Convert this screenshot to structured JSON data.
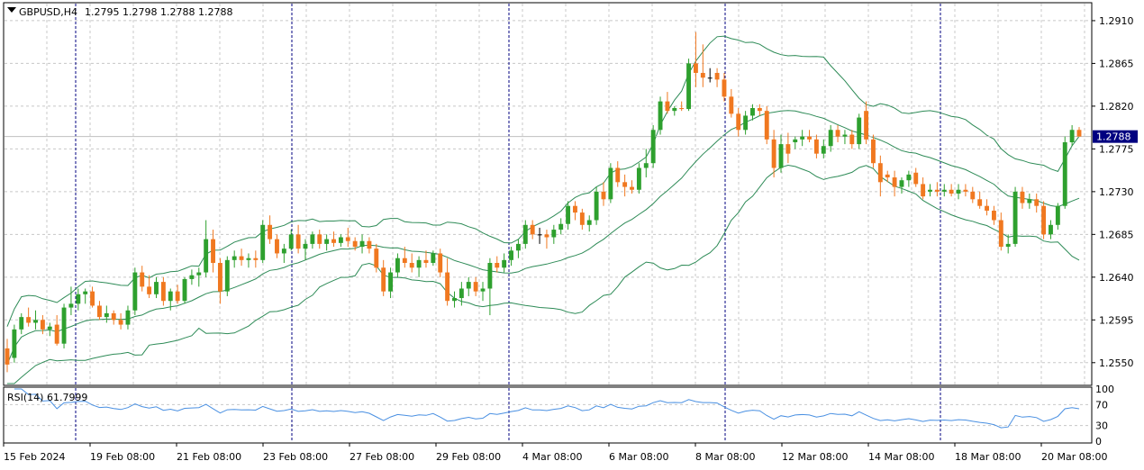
{
  "header": {
    "symbol_label": "GBPUSD,H4",
    "ohlc_values": [
      "1.2795",
      "1.2798",
      "1.2788",
      "1.2788"
    ]
  },
  "current_price_label": "1.2788",
  "price_axis_labels": [
    "1.2910",
    "1.2865",
    "1.2820",
    "1.2775",
    "1.2730",
    "1.2685",
    "1.2640",
    "1.2595",
    "1.2550"
  ],
  "rsi": {
    "label": "RSI(14) 61.7999",
    "axis_labels": [
      "100",
      "70",
      "30",
      "0"
    ]
  },
  "time_axis_labels": [
    "15 Feb 2024",
    "19 Feb 08:00",
    "21 Feb 08:00",
    "23 Feb 08:00",
    "27 Feb 08:00",
    "29 Feb 08:00",
    "4 Mar 08:00",
    "6 Mar 08:00",
    "8 Mar 08:00",
    "12 Mar 08:00",
    "14 Mar 08:00",
    "18 Mar 08:00",
    "20 Mar 08:00"
  ],
  "colors": {
    "bull": "#2ea02e",
    "bear": "#f07820",
    "doji": "#000000",
    "bands": "#2e8b57",
    "rsi_line": "#4a90e2",
    "separator": "#000080",
    "grid": "#c8c8c8",
    "price_tag_bg": "#000080"
  },
  "chart_data": {
    "type": "candlestick",
    "symbol": "GBPUSD",
    "timeframe": "H4",
    "y_range": [
      1.2528,
      1.2927
    ],
    "indicators": [
      "Bollinger Bands",
      "RSI(14)"
    ],
    "rsi_value": 61.7999,
    "rsi_range": [
      0,
      100
    ],
    "rsi_levels": [
      70,
      30
    ],
    "grid": true,
    "candles": [
      {
        "o": 1.2565,
        "h": 1.2575,
        "l": 1.254,
        "c": 1.2548
      },
      {
        "o": 1.2555,
        "h": 1.259,
        "l": 1.255,
        "c": 1.2585
      },
      {
        "o": 1.2585,
        "h": 1.2602,
        "l": 1.258,
        "c": 1.2598
      },
      {
        "o": 1.2598,
        "h": 1.2608,
        "l": 1.2588,
        "c": 1.2592
      },
      {
        "o": 1.2592,
        "h": 1.2605,
        "l": 1.2585,
        "c": 1.2595
      },
      {
        "o": 1.2595,
        "h": 1.26,
        "l": 1.258,
        "c": 1.2585
      },
      {
        "o": 1.2585,
        "h": 1.2592,
        "l": 1.2578,
        "c": 1.2588
      },
      {
        "o": 1.259,
        "h": 1.26,
        "l": 1.2568,
        "c": 1.257
      },
      {
        "o": 1.257,
        "h": 1.2612,
        "l": 1.2565,
        "c": 1.2608
      },
      {
        "o": 1.2608,
        "h": 1.263,
        "l": 1.26,
        "c": 1.2612
      },
      {
        "o": 1.2612,
        "h": 1.2628,
        "l": 1.2605,
        "c": 1.2622
      },
      {
        "o": 1.2622,
        "h": 1.2628,
        "l": 1.2612,
        "c": 1.2625
      },
      {
        "o": 1.2625,
        "h": 1.263,
        "l": 1.2608,
        "c": 1.261
      },
      {
        "o": 1.261,
        "h": 1.2615,
        "l": 1.2595,
        "c": 1.2598
      },
      {
        "o": 1.2598,
        "h": 1.261,
        "l": 1.2592,
        "c": 1.2602
      },
      {
        "o": 1.2602,
        "h": 1.2605,
        "l": 1.259,
        "c": 1.2595
      },
      {
        "o": 1.2595,
        "h": 1.2602,
        "l": 1.2585,
        "c": 1.259
      },
      {
        "o": 1.259,
        "h": 1.261,
        "l": 1.2585,
        "c": 1.2605
      },
      {
        "o": 1.2605,
        "h": 1.265,
        "l": 1.26,
        "c": 1.2645
      },
      {
        "o": 1.2645,
        "h": 1.2652,
        "l": 1.2625,
        "c": 1.263
      },
      {
        "o": 1.263,
        "h": 1.2642,
        "l": 1.2618,
        "c": 1.2622
      },
      {
        "o": 1.2622,
        "h": 1.264,
        "l": 1.2618,
        "c": 1.2635
      },
      {
        "o": 1.2635,
        "h": 1.264,
        "l": 1.261,
        "c": 1.2615
      },
      {
        "o": 1.2615,
        "h": 1.2628,
        "l": 1.2605,
        "c": 1.2625
      },
      {
        "o": 1.2625,
        "h": 1.2632,
        "l": 1.2612,
        "c": 1.2615
      },
      {
        "o": 1.2615,
        "h": 1.264,
        "l": 1.2612,
        "c": 1.2638
      },
      {
        "o": 1.2638,
        "h": 1.2648,
        "l": 1.2632,
        "c": 1.2642
      },
      {
        "o": 1.2642,
        "h": 1.265,
        "l": 1.263,
        "c": 1.2645
      },
      {
        "o": 1.2645,
        "h": 1.27,
        "l": 1.264,
        "c": 1.268
      },
      {
        "o": 1.268,
        "h": 1.269,
        "l": 1.2645,
        "c": 1.2655
      },
      {
        "o": 1.2655,
        "h": 1.266,
        "l": 1.2612,
        "c": 1.2625
      },
      {
        "o": 1.2625,
        "h": 1.2662,
        "l": 1.262,
        "c": 1.2658
      },
      {
        "o": 1.2658,
        "h": 1.2668,
        "l": 1.265,
        "c": 1.2662
      },
      {
        "o": 1.2662,
        "h": 1.267,
        "l": 1.2652,
        "c": 1.2658
      },
      {
        "o": 1.2658,
        "h": 1.2665,
        "l": 1.265,
        "c": 1.266
      },
      {
        "o": 1.266,
        "h": 1.2668,
        "l": 1.265,
        "c": 1.2658
      },
      {
        "o": 1.2658,
        "h": 1.27,
        "l": 1.2655,
        "c": 1.2695
      },
      {
        "o": 1.2695,
        "h": 1.2705,
        "l": 1.2675,
        "c": 1.268
      },
      {
        "o": 1.268,
        "h": 1.2685,
        "l": 1.266,
        "c": 1.2665
      },
      {
        "o": 1.2665,
        "h": 1.2675,
        "l": 1.2655,
        "c": 1.267
      },
      {
        "o": 1.267,
        "h": 1.269,
        "l": 1.2668,
        "c": 1.2685
      },
      {
        "o": 1.2685,
        "h": 1.2695,
        "l": 1.2665,
        "c": 1.267
      },
      {
        "o": 1.267,
        "h": 1.268,
        "l": 1.2658,
        "c": 1.2675
      },
      {
        "o": 1.2675,
        "h": 1.2688,
        "l": 1.267,
        "c": 1.2685
      },
      {
        "o": 1.2685,
        "h": 1.269,
        "l": 1.267,
        "c": 1.2675
      },
      {
        "o": 1.2675,
        "h": 1.2685,
        "l": 1.2668,
        "c": 1.268
      },
      {
        "o": 1.268,
        "h": 1.2688,
        "l": 1.2672,
        "c": 1.2676
      },
      {
        "o": 1.2676,
        "h": 1.2685,
        "l": 1.2672,
        "c": 1.2682
      },
      {
        "o": 1.2682,
        "h": 1.2692,
        "l": 1.2672,
        "c": 1.2678
      },
      {
        "o": 1.2678,
        "h": 1.2682,
        "l": 1.2668,
        "c": 1.2672
      },
      {
        "o": 1.2672,
        "h": 1.2685,
        "l": 1.2665,
        "c": 1.2678
      },
      {
        "o": 1.2678,
        "h": 1.2682,
        "l": 1.2665,
        "c": 1.267
      },
      {
        "o": 1.267,
        "h": 1.2675,
        "l": 1.2645,
        "c": 1.265
      },
      {
        "o": 1.265,
        "h": 1.2658,
        "l": 1.262,
        "c": 1.2625
      },
      {
        "o": 1.2625,
        "h": 1.265,
        "l": 1.2618,
        "c": 1.2645
      },
      {
        "o": 1.2645,
        "h": 1.2665,
        "l": 1.264,
        "c": 1.266
      },
      {
        "o": 1.266,
        "h": 1.2672,
        "l": 1.265,
        "c": 1.2655
      },
      {
        "o": 1.2655,
        "h": 1.2665,
        "l": 1.2645,
        "c": 1.265
      },
      {
        "o": 1.265,
        "h": 1.2662,
        "l": 1.264,
        "c": 1.2658
      },
      {
        "o": 1.2658,
        "h": 1.2668,
        "l": 1.265,
        "c": 1.2655
      },
      {
        "o": 1.2655,
        "h": 1.2668,
        "l": 1.2652,
        "c": 1.2665
      },
      {
        "o": 1.2665,
        "h": 1.267,
        "l": 1.264,
        "c": 1.2645
      },
      {
        "o": 1.2645,
        "h": 1.266,
        "l": 1.261,
        "c": 1.2615
      },
      {
        "o": 1.2615,
        "h": 1.2625,
        "l": 1.2608,
        "c": 1.2618
      },
      {
        "o": 1.2618,
        "h": 1.2635,
        "l": 1.261,
        "c": 1.2628
      },
      {
        "o": 1.2628,
        "h": 1.264,
        "l": 1.262,
        "c": 1.2635
      },
      {
        "o": 1.2635,
        "h": 1.264,
        "l": 1.262,
        "c": 1.2625
      },
      {
        "o": 1.2625,
        "h": 1.2635,
        "l": 1.2615,
        "c": 1.2628
      },
      {
        "o": 1.2628,
        "h": 1.266,
        "l": 1.26,
        "c": 1.2655
      },
      {
        "o": 1.2655,
        "h": 1.2662,
        "l": 1.2645,
        "c": 1.265
      },
      {
        "o": 1.265,
        "h": 1.2665,
        "l": 1.2645,
        "c": 1.2658
      },
      {
        "o": 1.2658,
        "h": 1.2672,
        "l": 1.2652,
        "c": 1.2668
      },
      {
        "o": 1.2668,
        "h": 1.268,
        "l": 1.266,
        "c": 1.2675
      },
      {
        "o": 1.2675,
        "h": 1.27,
        "l": 1.267,
        "c": 1.2695
      },
      {
        "o": 1.2695,
        "h": 1.27,
        "l": 1.268,
        "c": 1.2685
      },
      {
        "o": 1.2685,
        "h": 1.2692,
        "l": 1.2675,
        "c": 1.2685
      },
      {
        "o": 1.2685,
        "h": 1.269,
        "l": 1.267,
        "c": 1.2682
      },
      {
        "o": 1.2682,
        "h": 1.2695,
        "l": 1.2675,
        "c": 1.269
      },
      {
        "o": 1.269,
        "h": 1.2702,
        "l": 1.2685,
        "c": 1.2696
      },
      {
        "o": 1.2696,
        "h": 1.272,
        "l": 1.269,
        "c": 1.2715
      },
      {
        "o": 1.2715,
        "h": 1.272,
        "l": 1.27,
        "c": 1.2708
      },
      {
        "o": 1.2708,
        "h": 1.2712,
        "l": 1.269,
        "c": 1.2695
      },
      {
        "o": 1.2695,
        "h": 1.2705,
        "l": 1.2688,
        "c": 1.27
      },
      {
        "o": 1.27,
        "h": 1.2735,
        "l": 1.2695,
        "c": 1.273
      },
      {
        "o": 1.273,
        "h": 1.274,
        "l": 1.2715,
        "c": 1.2722
      },
      {
        "o": 1.2722,
        "h": 1.276,
        "l": 1.2718,
        "c": 1.2755
      },
      {
        "o": 1.2755,
        "h": 1.2762,
        "l": 1.2735,
        "c": 1.274
      },
      {
        "o": 1.274,
        "h": 1.2748,
        "l": 1.2725,
        "c": 1.2735
      },
      {
        "o": 1.2735,
        "h": 1.2742,
        "l": 1.2728,
        "c": 1.2732
      },
      {
        "o": 1.2732,
        "h": 1.276,
        "l": 1.2728,
        "c": 1.2755
      },
      {
        "o": 1.2755,
        "h": 1.2775,
        "l": 1.2745,
        "c": 1.276
      },
      {
        "o": 1.276,
        "h": 1.28,
        "l": 1.2755,
        "c": 1.2795
      },
      {
        "o": 1.2795,
        "h": 1.283,
        "l": 1.279,
        "c": 1.2825
      },
      {
        "o": 1.2825,
        "h": 1.2835,
        "l": 1.2812,
        "c": 1.2815
      },
      {
        "o": 1.2815,
        "h": 1.282,
        "l": 1.281,
        "c": 1.2818
      },
      {
        "o": 1.2818,
        "h": 1.2825,
        "l": 1.2815,
        "c": 1.2817
      },
      {
        "o": 1.2817,
        "h": 1.287,
        "l": 1.2815,
        "c": 1.2865
      },
      {
        "o": 1.2865,
        "h": 1.2898,
        "l": 1.284,
        "c": 1.2855
      },
      {
        "o": 1.2855,
        "h": 1.2885,
        "l": 1.284,
        "c": 1.285
      },
      {
        "o": 1.285,
        "h": 1.286,
        "l": 1.2845,
        "c": 1.285
      },
      {
        "o": 1.2855,
        "h": 1.286,
        "l": 1.284,
        "c": 1.2848
      },
      {
        "o": 1.2848,
        "h": 1.2855,
        "l": 1.2825,
        "c": 1.283
      },
      {
        "o": 1.283,
        "h": 1.2838,
        "l": 1.2808,
        "c": 1.2812
      },
      {
        "o": 1.2812,
        "h": 1.2818,
        "l": 1.2788,
        "c": 1.2795
      },
      {
        "o": 1.2795,
        "h": 1.2815,
        "l": 1.279,
        "c": 1.281
      },
      {
        "o": 1.281,
        "h": 1.2822,
        "l": 1.2805,
        "c": 1.2818
      },
      {
        "o": 1.2818,
        "h": 1.2822,
        "l": 1.281,
        "c": 1.2815
      },
      {
        "o": 1.2815,
        "h": 1.282,
        "l": 1.278,
        "c": 1.2785
      },
      {
        "o": 1.2785,
        "h": 1.2795,
        "l": 1.2745,
        "c": 1.2755
      },
      {
        "o": 1.2755,
        "h": 1.279,
        "l": 1.275,
        "c": 1.278
      },
      {
        "o": 1.278,
        "h": 1.2792,
        "l": 1.276,
        "c": 1.277
      },
      {
        "o": 1.2782,
        "h": 1.2788,
        "l": 1.2775,
        "c": 1.2785
      },
      {
        "o": 1.2785,
        "h": 1.2795,
        "l": 1.2778,
        "c": 1.2788
      },
      {
        "o": 1.2788,
        "h": 1.2795,
        "l": 1.2782,
        "c": 1.2785
      },
      {
        "o": 1.2785,
        "h": 1.279,
        "l": 1.2765,
        "c": 1.277
      },
      {
        "o": 1.277,
        "h": 1.2785,
        "l": 1.2765,
        "c": 1.2778
      },
      {
        "o": 1.2778,
        "h": 1.28,
        "l": 1.2772,
        "c": 1.2795
      },
      {
        "o": 1.2795,
        "h": 1.28,
        "l": 1.2782,
        "c": 1.2788
      },
      {
        "o": 1.2788,
        "h": 1.2795,
        "l": 1.278,
        "c": 1.279
      },
      {
        "o": 1.279,
        "h": 1.2795,
        "l": 1.2775,
        "c": 1.278
      },
      {
        "o": 1.278,
        "h": 1.2812,
        "l": 1.2775,
        "c": 1.2808
      },
      {
        "o": 1.2815,
        "h": 1.2825,
        "l": 1.278,
        "c": 1.2785
      },
      {
        "o": 1.2785,
        "h": 1.279,
        "l": 1.2755,
        "c": 1.276
      },
      {
        "o": 1.276,
        "h": 1.2768,
        "l": 1.2725,
        "c": 1.274
      },
      {
        "o": 1.2748,
        "h": 1.2752,
        "l": 1.274,
        "c": 1.2745
      },
      {
        "o": 1.2745,
        "h": 1.2752,
        "l": 1.2725,
        "c": 1.2735
      },
      {
        "o": 1.2735,
        "h": 1.2745,
        "l": 1.2728,
        "c": 1.2742
      },
      {
        "o": 1.2742,
        "h": 1.2752,
        "l": 1.2735,
        "c": 1.2748
      },
      {
        "o": 1.275,
        "h": 1.2755,
        "l": 1.2735,
        "c": 1.2738
      },
      {
        "o": 1.2738,
        "h": 1.2745,
        "l": 1.2722,
        "c": 1.2725
      },
      {
        "o": 1.273,
        "h": 1.2738,
        "l": 1.2725,
        "c": 1.2732
      },
      {
        "o": 1.2732,
        "h": 1.274,
        "l": 1.2725,
        "c": 1.273
      },
      {
        "o": 1.273,
        "h": 1.2738,
        "l": 1.2725,
        "c": 1.2732
      },
      {
        "o": 1.2732,
        "h": 1.2738,
        "l": 1.2725,
        "c": 1.2728
      },
      {
        "o": 1.2728,
        "h": 1.2738,
        "l": 1.2722,
        "c": 1.2732
      },
      {
        "o": 1.2732,
        "h": 1.2738,
        "l": 1.2725,
        "c": 1.273
      },
      {
        "o": 1.273,
        "h": 1.2735,
        "l": 1.2718,
        "c": 1.2722
      },
      {
        "o": 1.2722,
        "h": 1.273,
        "l": 1.2712,
        "c": 1.2715
      },
      {
        "o": 1.2715,
        "h": 1.2722,
        "l": 1.2705,
        "c": 1.271
      },
      {
        "o": 1.271,
        "h": 1.2715,
        "l": 1.2695,
        "c": 1.27
      },
      {
        "o": 1.27,
        "h": 1.2708,
        "l": 1.2668,
        "c": 1.2672
      },
      {
        "o": 1.2672,
        "h": 1.2685,
        "l": 1.2665,
        "c": 1.2675
      },
      {
        "o": 1.2675,
        "h": 1.2735,
        "l": 1.2672,
        "c": 1.273
      },
      {
        "o": 1.273,
        "h": 1.2735,
        "l": 1.2712,
        "c": 1.2718
      },
      {
        "o": 1.2718,
        "h": 1.2728,
        "l": 1.2712,
        "c": 1.2722
      },
      {
        "o": 1.2722,
        "h": 1.2728,
        "l": 1.2708,
        "c": 1.2715
      },
      {
        "o": 1.2715,
        "h": 1.272,
        "l": 1.268,
        "c": 1.2685
      },
      {
        "o": 1.2685,
        "h": 1.27,
        "l": 1.268,
        "c": 1.2695
      },
      {
        "o": 1.2695,
        "h": 1.2718,
        "l": 1.269,
        "c": 1.2715
      },
      {
        "o": 1.2715,
        "h": 1.2788,
        "l": 1.2712,
        "c": 1.2782
      },
      {
        "o": 1.2782,
        "h": 1.28,
        "l": 1.2778,
        "c": 1.2795
      },
      {
        "o": 1.2795,
        "h": 1.2798,
        "l": 1.2788,
        "c": 1.2788
      }
    ]
  }
}
